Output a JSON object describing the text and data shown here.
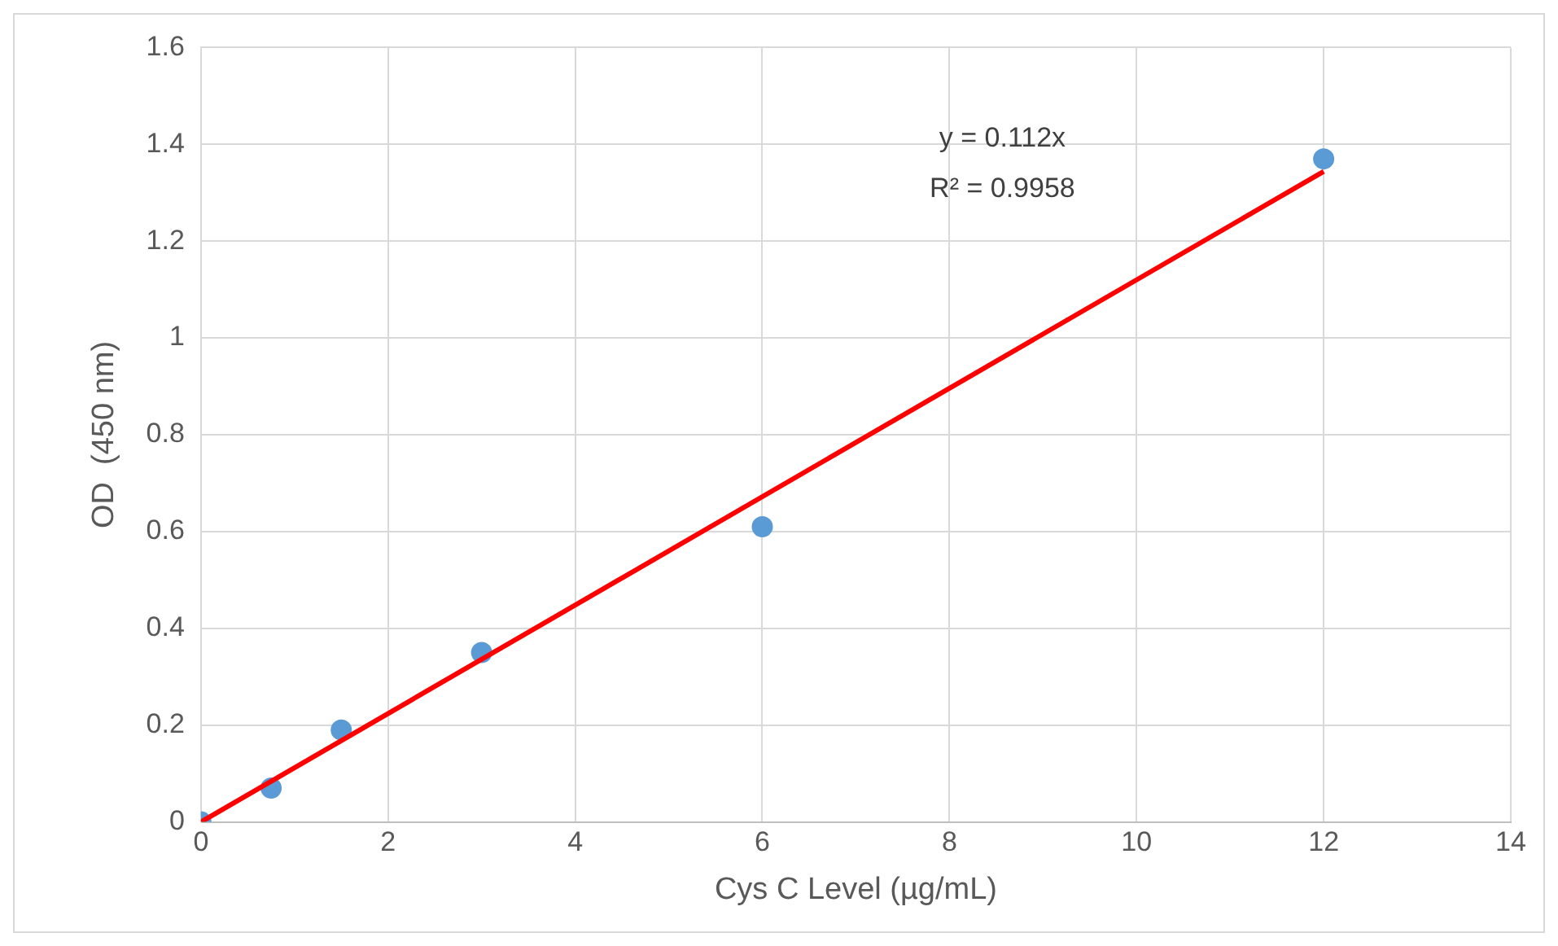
{
  "chart_data": {
    "type": "scatter",
    "xlabel": "Cys C Level (µg/mL)",
    "ylabel": "OD  (450 nm)",
    "series": [
      {
        "type": "scatter",
        "color": "#5b9bd5",
        "marker": "circle",
        "x": [
          0,
          0.75,
          1.5,
          3,
          6,
          12
        ],
        "values": [
          0,
          0.07,
          0.19,
          0.35,
          0.61,
          1.37
        ]
      },
      {
        "type": "line",
        "color": "#ff0000",
        "marker": "none",
        "line_style": "solid",
        "x": [
          0,
          12
        ],
        "values": [
          0,
          1.344
        ]
      }
    ],
    "annotations": [
      "y = 0.112x",
      "R² = 0.9958"
    ],
    "xlim": [
      0,
      14
    ],
    "xticks": [
      0,
      2,
      4,
      6,
      8,
      10,
      12,
      14
    ],
    "ylim": [
      0,
      1.6
    ],
    "yticks": [
      0,
      0.2,
      0.4,
      0.6,
      0.8,
      1,
      1.2,
      1.4,
      1.6
    ],
    "grid": true,
    "legend": false
  }
}
